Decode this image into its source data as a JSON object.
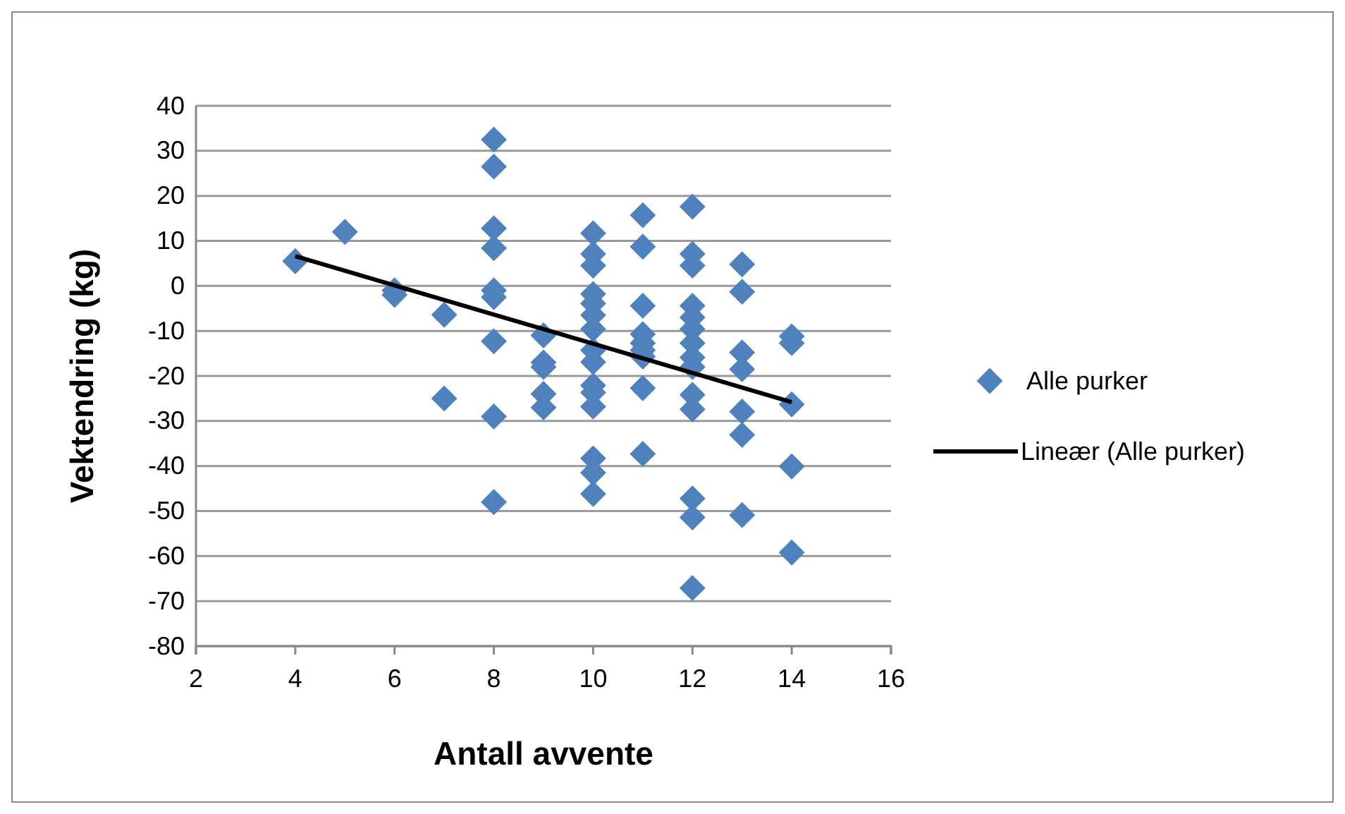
{
  "chart_data": {
    "type": "scatter",
    "xlabel": "Antall avvente",
    "ylabel": "Vektendring (kg)",
    "xlim": [
      2,
      16
    ],
    "xticks": [
      2,
      4,
      6,
      8,
      10,
      12,
      14,
      16
    ],
    "ylim": [
      -80,
      40
    ],
    "yticks": [
      -80,
      -70,
      -60,
      -50,
      -40,
      -30,
      -20,
      -10,
      0,
      10,
      20,
      30,
      40
    ],
    "grid": "y",
    "legend": "right",
    "series": [
      {
        "name": "Alle purker",
        "color": "#4f81bd",
        "marker": "diamond",
        "x": [
          4,
          5,
          6,
          6,
          7,
          7,
          8,
          8,
          8,
          8,
          8,
          8,
          8,
          8,
          8,
          9,
          9,
          9,
          9,
          9,
          10,
          10,
          10,
          10,
          10,
          10,
          10,
          10,
          10,
          10,
          10,
          10,
          10,
          10,
          10,
          11,
          11,
          11,
          11,
          11,
          11,
          11,
          11,
          11,
          12,
          12,
          12,
          12,
          12,
          12,
          12,
          12,
          12,
          12,
          12,
          12,
          12,
          12,
          13,
          13,
          13,
          13,
          13,
          13,
          13,
          14,
          14,
          14,
          14,
          14
        ],
        "values": [
          5.5,
          12,
          -1,
          -2,
          -6.4,
          -25,
          32.5,
          26.5,
          12.8,
          8.4,
          -1,
          -2.5,
          -12.3,
          -29,
          -48,
          -11,
          -17,
          -18,
          -24,
          -27,
          11.7,
          7.1,
          4.5,
          -1.8,
          -3.9,
          -6.5,
          -9.6,
          -14.3,
          -16.9,
          -22.1,
          -23.7,
          -26.8,
          -38.3,
          -41.5,
          -46.2,
          15.7,
          8.7,
          -4.4,
          -10.7,
          -12.7,
          -14.3,
          -15.7,
          -22.7,
          -37.3,
          17.6,
          7.1,
          4.5,
          -4.4,
          -7,
          -9.6,
          -12.7,
          -15.9,
          -18,
          -24.2,
          -27.4,
          -47.2,
          -51.4,
          -67.1,
          4.8,
          -1.3,
          -14.8,
          -18.5,
          -27.9,
          -33.1,
          -50.9,
          -11.2,
          -12.7,
          -26.3,
          -40.1,
          -59.2
        ]
      },
      {
        "name": "Lineær (Alle purker)",
        "type": "line",
        "color": "#000000",
        "line_style": "solid",
        "x": [
          4,
          14
        ],
        "values": [
          6.6,
          -25.8
        ]
      }
    ]
  }
}
